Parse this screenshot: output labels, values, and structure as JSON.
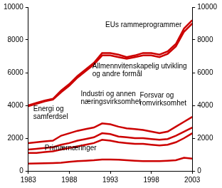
{
  "chart_data": {
    "type": "line",
    "stacked": true,
    "grid": false,
    "color": "#cc0000",
    "x": [
      1983,
      1984,
      1985,
      1986,
      1987,
      1988,
      1989,
      1990,
      1991,
      1992,
      1993,
      1994,
      1995,
      1996,
      1997,
      1998,
      1999,
      2000,
      2001,
      2002,
      2003
    ],
    "xlim": [
      1983,
      2003
    ],
    "xticks": [
      1983,
      1988,
      1993,
      1998,
      2003
    ],
    "ylim": [
      0,
      10000
    ],
    "yticks": [
      0,
      2000,
      4000,
      6000,
      8000,
      10000
    ],
    "series": [
      {
        "name": "Primærnæringer",
        "color": "#cc0000",
        "values": [
          450,
          460,
          470,
          480,
          500,
          550,
          600,
          620,
          650,
          700,
          700,
          680,
          650,
          620,
          600,
          600,
          600,
          620,
          650,
          800,
          750
        ]
      },
      {
        "name": "Energi og samferdsel",
        "color": "#cc0000",
        "values": [
          650,
          640,
          680,
          720,
          800,
          850,
          900,
          980,
          1050,
          1200,
          1150,
          1070,
          1050,
          1030,
          1050,
          1000,
          950,
          980,
          1100,
          1200,
          1550
        ]
      },
      {
        "name": "Industri og annen næringsvirksomhet",
        "color": "#cc0000",
        "values": [
          200,
          250,
          250,
          250,
          300,
          300,
          350,
          350,
          350,
          400,
          400,
          350,
          350,
          350,
          350,
          350,
          350,
          350,
          400,
          400,
          350
        ]
      },
      {
        "name": "Forsvar og romvirksomhet",
        "color": "#cc0000",
        "values": [
          400,
          400,
          400,
          400,
          550,
          600,
          600,
          600,
          600,
          600,
          600,
          600,
          550,
          550,
          500,
          450,
          400,
          450,
          550,
          600,
          650
        ]
      },
      {
        "name": "Allmennvitenskapelig utvikling og andre formål",
        "color": "#cc0000",
        "values": [
          2250,
          2350,
          2450,
          2500,
          2650,
          2900,
          3250,
          3550,
          3850,
          4150,
          4200,
          4250,
          4250,
          4400,
          4550,
          4650,
          4650,
          4750,
          4900,
          5500,
          5700
        ]
      },
      {
        "name": "EUs rammeprogrammer",
        "color": "#cc0000",
        "values": [
          50,
          50,
          50,
          50,
          100,
          100,
          100,
          100,
          100,
          150,
          150,
          150,
          100,
          100,
          150,
          150,
          150,
          150,
          150,
          200,
          200
        ]
      }
    ]
  }
}
